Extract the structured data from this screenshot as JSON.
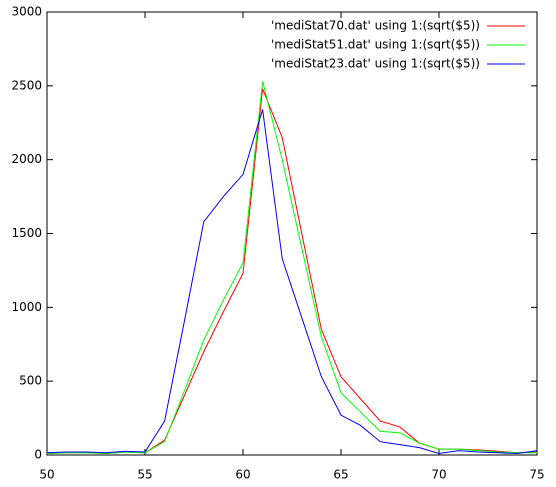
{
  "chart_data": {
    "type": "line",
    "x": [
      50,
      51,
      52,
      53,
      54,
      55,
      56,
      57,
      58,
      59,
      60,
      61,
      62,
      63,
      64,
      65,
      66,
      67,
      68,
      69,
      70,
      71,
      72,
      73,
      74,
      75
    ],
    "series": [
      {
        "name": "'mediStat70.dat' using 1:(sqrt($5))",
        "color": "#ff0000",
        "values": [
          10,
          15,
          15,
          10,
          20,
          15,
          100,
          400,
          700,
          970,
          1230,
          2480,
          2150,
          1500,
          850,
          530,
          380,
          230,
          190,
          80,
          40,
          40,
          35,
          25,
          15,
          20
        ]
      },
      {
        "name": "'mediStat51.dat' using 1:(sqrt($5))",
        "color": "#00ff00",
        "values": [
          10,
          15,
          15,
          10,
          20,
          15,
          90,
          430,
          780,
          1050,
          1300,
          2530,
          2000,
          1400,
          800,
          420,
          290,
          160,
          150,
          80,
          40,
          40,
          30,
          20,
          15,
          15
        ]
      },
      {
        "name": "'mediStat23.dat' using 1:(sqrt($5))",
        "color": "#0000ff",
        "values": [
          15,
          20,
          20,
          15,
          25,
          20,
          230,
          900,
          1580,
          1750,
          1900,
          2340,
          1330,
          930,
          530,
          270,
          200,
          90,
          70,
          50,
          10,
          30,
          20,
          15,
          10,
          30
        ]
      }
    ],
    "xlim": [
      50,
      75
    ],
    "xticks": [
      50,
      55,
      60,
      65,
      70,
      75
    ],
    "ylim": [
      0,
      3000
    ],
    "yticks": [
      0,
      500,
      1000,
      1500,
      2000,
      2500,
      3000
    ],
    "grid": false,
    "legend": "top-right"
  }
}
